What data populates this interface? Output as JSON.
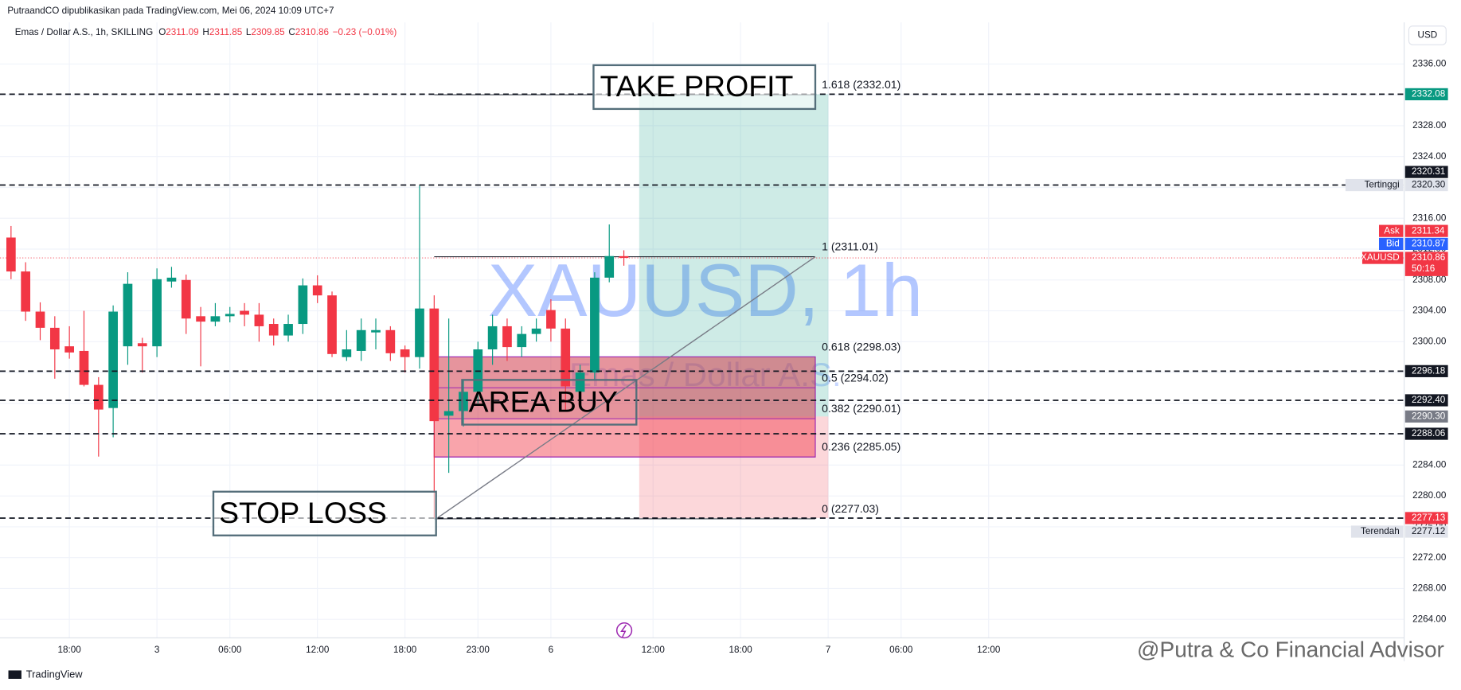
{
  "header": {
    "publisher": "PutraandCO dipublikasikan pada TradingView.com, Mei 06, 2024 10:09 UTC+7",
    "currency_button": "USD",
    "footer_logo": "TradingView",
    "credit": "@Putra & Co Financial Advisor"
  },
  "chart_data": {
    "type": "candlestick",
    "legend": {
      "symbol": "Emas / Dollar A.S., 1h, SKILLING",
      "o": "O",
      "h": "H",
      "l": "L",
      "c": "C",
      "change": "−0.23 (−0.01%)"
    },
    "watermark": {
      "title": "XAUUSD, 1h",
      "subtitle": "Emas / Dollar A.S."
    },
    "categories": [
      null,
      null,
      null,
      null,
      "18:00",
      null,
      null,
      null,
      null,
      null,
      "3",
      null,
      null,
      null,
      null,
      "06:00",
      null,
      null,
      null,
      null,
      null,
      "12:00",
      null,
      null,
      null,
      null,
      null,
      "18:00",
      null,
      null,
      null,
      null,
      "23:00",
      null,
      null,
      null,
      null,
      "6",
      null,
      null,
      null,
      null,
      null,
      null,
      "12:00",
      null,
      null,
      null,
      null,
      null,
      "18:00",
      null,
      null,
      null,
      null,
      null,
      "7",
      null,
      null,
      null,
      null,
      "06:00",
      null,
      null,
      null,
      null,
      null,
      "12:00"
    ],
    "open": [
      2313.5,
      2309.1,
      2303.9,
      2301.8,
      2299.4,
      2298.8,
      2294.4,
      2291.4,
      2299.4,
      2299.8,
      2299.4,
      2307.8,
      2308.0,
      2303.3,
      2302.6,
      2303.3,
      2304.0,
      2303.5,
      2302.3,
      2300.8,
      2302.3,
      2307.3,
      2306.0,
      2298.0,
      2298.8,
      2301.2,
      2301.5,
      2299.0,
      2298.0,
      2304.3,
      2290.4,
      2291.0,
      2293.5,
      2299.0,
      2302.0,
      2299.3,
      2301.0,
      2304.1,
      2301.7,
      2293.5,
      2296.0,
      2308.3,
      2311.09,
      null,
      null,
      null,
      null,
      null,
      null,
      null,
      null,
      null,
      null,
      null,
      null,
      null,
      null,
      null,
      null,
      null,
      null,
      null,
      null,
      null,
      null,
      null,
      null,
      null
    ],
    "high": [
      2315.0,
      2310.3,
      2305.1,
      2303.3,
      2302.0,
      2304.0,
      2295.4,
      2304.7,
      2309.0,
      2300.5,
      2309.5,
      2309.7,
      2308.7,
      2304.5,
      2305.0,
      2304.5,
      2305.0,
      2305.0,
      2303.0,
      2303.5,
      2308.2,
      2308.6,
      2306.5,
      2301.5,
      2303.0,
      2303.0,
      2302.0,
      2299.5,
      2320.3,
      2306.0,
      2303.0,
      2295.0,
      2300.0,
      2303.5,
      2303.0,
      2302.0,
      2303.0,
      2305.5,
      2303.0,
      2297.0,
      2309.0,
      2315.2,
      2311.85,
      null,
      null,
      null,
      null,
      null,
      null,
      null,
      null,
      null,
      null,
      null,
      null,
      null,
      null,
      null,
      null,
      null,
      null,
      null,
      null,
      null,
      null,
      null,
      null,
      null
    ],
    "low": [
      2308.1,
      2302.7,
      2300.2,
      2295.2,
      2297.8,
      2294.2,
      2285.1,
      2287.6,
      2297.0,
      2296.0,
      2298.0,
      2307.0,
      2301.0,
      2296.8,
      2302.0,
      2302.5,
      2302.0,
      2300.0,
      2299.5,
      2300.0,
      2301.0,
      2305.0,
      2298.0,
      2297.5,
      2297.5,
      2299.0,
      2297.5,
      2296.0,
      2296.5,
      2277.12,
      2283.0,
      2289.0,
      2292.0,
      2297.0,
      2297.5,
      2298.0,
      2300.0,
      2300.0,
      2291.0,
      2292.0,
      2295.0,
      2307.7,
      2309.85,
      null,
      null,
      null,
      null,
      null,
      null,
      null,
      null,
      null,
      null,
      null,
      null,
      null,
      null,
      null,
      null,
      null,
      null,
      null,
      null,
      null,
      null,
      null,
      null,
      null
    ],
    "close": [
      2309.1,
      2303.9,
      2301.8,
      2299.0,
      2298.6,
      2294.4,
      2291.2,
      2303.9,
      2307.5,
      2299.4,
      2308.1,
      2308.3,
      2303.0,
      2302.6,
      2303.3,
      2303.6,
      2303.5,
      2302.0,
      2300.8,
      2302.3,
      2307.3,
      2306.0,
      2298.4,
      2299.0,
      2301.5,
      2301.5,
      2298.5,
      2298.0,
      2304.3,
      2289.7,
      2291.0,
      2293.5,
      2299.0,
      2302.0,
      2299.3,
      2301.0,
      2301.7,
      2301.7,
      2294.2,
      2296.0,
      2308.3,
      2311.1,
      2310.86,
      null,
      null,
      null,
      null,
      null,
      null,
      null,
      null,
      null,
      null,
      null,
      null,
      null,
      null,
      null,
      null,
      null,
      null,
      null,
      null,
      null,
      null,
      null,
      null,
      null
    ],
    "up_color": "#089981",
    "down_color": "#f23645",
    "ylim": [
      2261.6,
      2341.4
    ],
    "yticks": [
      {
        "value": 2264,
        "label": "2264.00"
      },
      {
        "value": 2268,
        "label": "2268.00"
      },
      {
        "value": 2272,
        "label": "2272.00"
      },
      {
        "value": 2276,
        "label": "2276.00"
      },
      {
        "value": 2280,
        "label": "2280.00"
      },
      {
        "value": 2284,
        "label": "2284.00"
      },
      {
        "value": 2288,
        "label": "2288.00"
      },
      {
        "value": 2292,
        "label": "2292.00"
      },
      {
        "value": 2296,
        "label": "2296.00"
      },
      {
        "value": 2300,
        "label": "2300.00"
      },
      {
        "value": 2304,
        "label": "2304.00"
      },
      {
        "value": 2308,
        "label": "2308.00"
      },
      {
        "value": 2312,
        "label": "2312.00"
      },
      {
        "value": 2316,
        "label": "2316.00"
      },
      {
        "value": 2320,
        "label": "2320.00"
      },
      {
        "value": 2324,
        "label": "2324.00"
      },
      {
        "value": 2328,
        "label": "2328.00"
      },
      {
        "value": 2332,
        "label": "2332.00"
      },
      {
        "value": 2336,
        "label": "2336.00"
      }
    ],
    "grid": true,
    "price_badges": [
      {
        "value": 2332.08,
        "label": "2332.08",
        "color": "#089981",
        "text_color": "#ffffff",
        "dashed": true
      },
      {
        "value": 2320.31,
        "label": "2320.31",
        "color": "#131722",
        "text_color": "#ffffff",
        "dashed": true
      },
      {
        "value": 2320.3,
        "label": "2320.30",
        "caption": "Tertinggi",
        "color": "#e0e3eb",
        "text_color": "#131722"
      },
      {
        "value": 2311.34,
        "label": "2311.34",
        "caption": "Ask",
        "color": "#f23645",
        "text_color": "#ffffff"
      },
      {
        "value": 2310.87,
        "label": "2310.87",
        "caption": "Bid",
        "color": "#2962ff",
        "text_color": "#ffffff"
      },
      {
        "value": 2310.86,
        "label": "2310.86",
        "caption": "XAUUSD",
        "countdown": "50:16",
        "color": "#f23645",
        "text_color": "#ffffff"
      },
      {
        "value": 2296.18,
        "label": "2296.18",
        "color": "#131722",
        "text_color": "#ffffff",
        "dashed": true
      },
      {
        "value": 2292.4,
        "label": "2292.40",
        "color": "#131722",
        "text_color": "#ffffff",
        "dashed": true
      },
      {
        "value": 2290.3,
        "label": "2290.30",
        "color": "#787b86",
        "text_color": "#ffffff"
      },
      {
        "value": 2288.06,
        "label": "2288.06",
        "color": "#131722",
        "text_color": "#ffffff",
        "dashed": true
      },
      {
        "value": 2277.13,
        "label": "2277.13",
        "color": "#f23645",
        "text_color": "#ffffff",
        "dashed": true
      },
      {
        "value": 2277.12,
        "label": "2277.12",
        "caption": "Terendah",
        "color": "#e0e3eb",
        "text_color": "#131722"
      }
    ],
    "fib_levels": [
      {
        "value": 2332.01,
        "label": "1.618 (2332.01)"
      },
      {
        "value": 2311.01,
        "label": "1 (2311.01)"
      },
      {
        "value": 2298.03,
        "label": "0.618 (2298.03)"
      },
      {
        "value": 2294.02,
        "label": "0.5 (2294.02)"
      },
      {
        "value": 2290.01,
        "label": "0.382 (2290.01)"
      },
      {
        "value": 2285.05,
        "label": "0.236 (2285.05)"
      },
      {
        "value": 2277.03,
        "label": "0 (2277.03)"
      }
    ],
    "position": {
      "target": 2332.08,
      "entry": 2290.3,
      "stop": 2277.13
    },
    "annotations": {
      "take_profit": "TAKE PROFIT",
      "area_buy": "AREA BUY",
      "stop_loss": "STOP LOSS"
    }
  }
}
